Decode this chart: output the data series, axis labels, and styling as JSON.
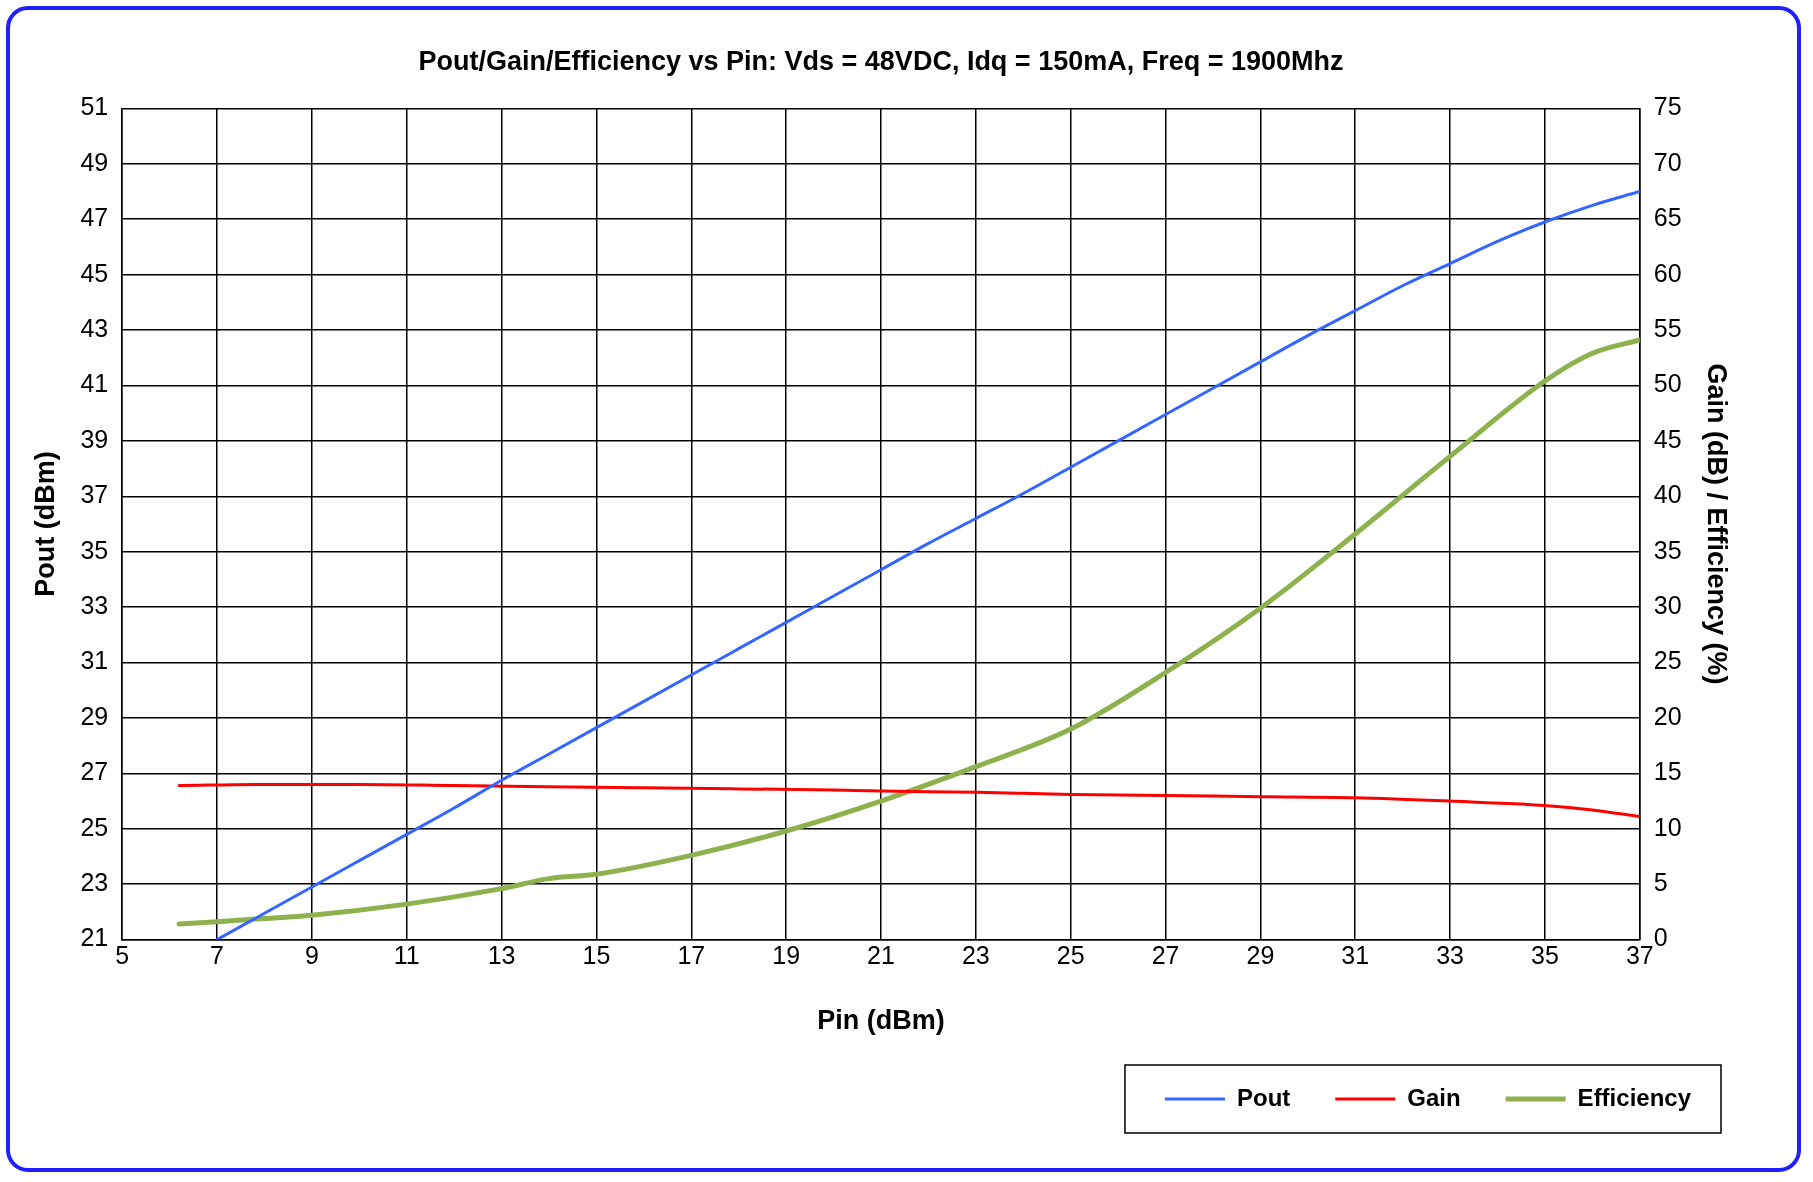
{
  "chart_data": {
    "type": "line",
    "title": "Pout/Gain/Efficiency vs Pin: Vds = 48VDC, Idq = 150mA, Freq = 1900Mhz",
    "xlabel": "Pin (dBm)",
    "ylabel": "Pout (dBm)",
    "y2label": "Gain (dB) / Efficiency (%)",
    "xlim": [
      5,
      37
    ],
    "xticks": [
      5,
      7,
      9,
      11,
      13,
      15,
      17,
      19,
      21,
      23,
      25,
      27,
      29,
      31,
      33,
      35,
      37
    ],
    "ylim": [
      21,
      51
    ],
    "yticks": [
      21,
      23,
      25,
      27,
      29,
      31,
      33,
      35,
      37,
      39,
      41,
      43,
      45,
      47,
      49,
      51
    ],
    "y2lim": [
      0,
      75
    ],
    "y2ticks": [
      0,
      5,
      10,
      15,
      20,
      25,
      30,
      35,
      40,
      45,
      50,
      55,
      60,
      65,
      70,
      75
    ],
    "grid": true,
    "legend": "bottom right",
    "marker": "none",
    "line_style": "solid",
    "series": [
      {
        "name": "Pout",
        "color": "#3366ff",
        "x": [
          7,
          8,
          9,
          10,
          11,
          12,
          13,
          14,
          15,
          16,
          17,
          18,
          19,
          20,
          21,
          22,
          23,
          24,
          25,
          26,
          27,
          28,
          29,
          30,
          31,
          32,
          33,
          34,
          35,
          36,
          37
        ],
        "values": [
          21.0,
          21.95,
          22.9,
          23.85,
          24.8,
          25.75,
          26.75,
          27.7,
          28.65,
          29.6,
          30.55,
          31.5,
          32.45,
          33.4,
          34.35,
          35.3,
          36.2,
          37.1,
          38.05,
          39.0,
          39.95,
          40.9,
          41.85,
          42.8,
          43.7,
          44.6,
          45.4,
          46.2,
          46.9,
          47.5,
          48.0
        ]
      },
      {
        "name": "Gain",
        "color": "#ff0000",
        "axis": "y2",
        "x": [
          6.2,
          8,
          10,
          12,
          14,
          16,
          18,
          20,
          21,
          23,
          25,
          27,
          29,
          31,
          33,
          35,
          36,
          37
        ],
        "values": [
          13.9,
          14.0,
          14.0,
          13.9,
          13.8,
          13.7,
          13.6,
          13.5,
          13.4,
          13.3,
          13.1,
          13.0,
          12.9,
          12.8,
          12.5,
          12.1,
          11.7,
          11.1
        ]
      },
      {
        "name": "Efficiency",
        "color": "#8db14d",
        "axis": "y2",
        "x": [
          6.2,
          8,
          9,
          11,
          13,
          14,
          15,
          17,
          19,
          21,
          23,
          25,
          27,
          29,
          31,
          33,
          35,
          36,
          37
        ],
        "values": [
          1.4,
          1.9,
          2.2,
          3.2,
          4.6,
          5.5,
          5.9,
          7.6,
          9.8,
          12.5,
          15.6,
          19.0,
          24.1,
          29.9,
          36.6,
          43.6,
          50.4,
          52.9,
          54.1
        ]
      }
    ]
  }
}
